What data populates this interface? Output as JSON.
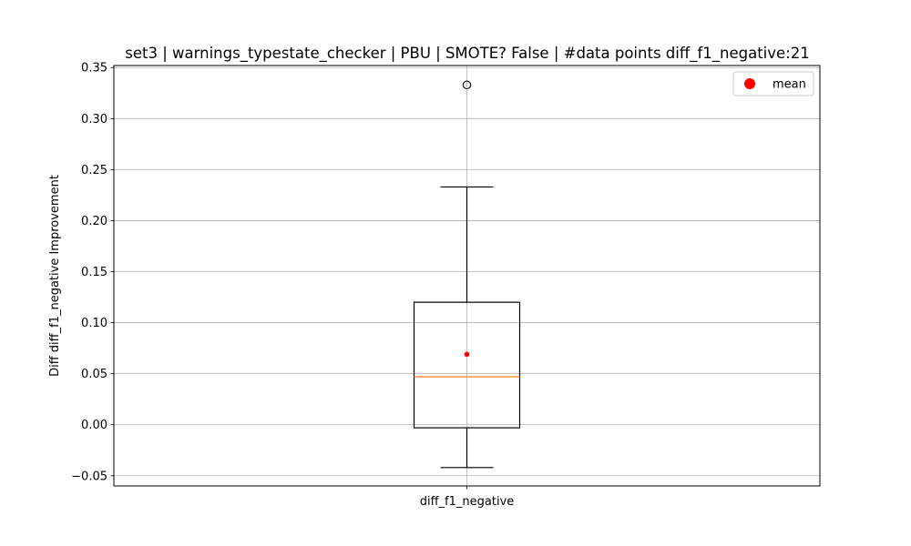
{
  "chart_data": {
    "type": "box",
    "title": "set3 | warnings_typestate_checker | PBU | SMOTE? False | #data points diff_f1_negative:21",
    "xlabel": "",
    "ylabel": "Diff diff_f1_negative Improvement",
    "categories": [
      "diff_f1_negative"
    ],
    "ylim": [
      -0.06,
      0.352
    ],
    "yticks": [
      -0.05,
      0.0,
      0.05,
      0.1,
      0.15,
      0.2,
      0.25,
      0.3,
      0.35
    ],
    "ytick_labels": [
      "−0.05",
      "0.00",
      "0.05",
      "0.10",
      "0.15",
      "0.20",
      "0.25",
      "0.30",
      "0.35"
    ],
    "grid": true,
    "legend": {
      "position": "top-right",
      "entries": [
        {
          "label": "mean",
          "color": "#ff0000",
          "marker": "circle"
        }
      ]
    },
    "boxes": [
      {
        "category": "diff_f1_negative",
        "whisker_low": -0.042,
        "q1": -0.003,
        "median": 0.047,
        "q3": 0.12,
        "whisker_high": 0.233,
        "mean": 0.069,
        "outliers": [
          0.333
        ]
      }
    ],
    "colors": {
      "box": "#000000",
      "median": "#ff7f0e",
      "mean": "#ff0000",
      "grid": "#b0b0b0"
    }
  }
}
